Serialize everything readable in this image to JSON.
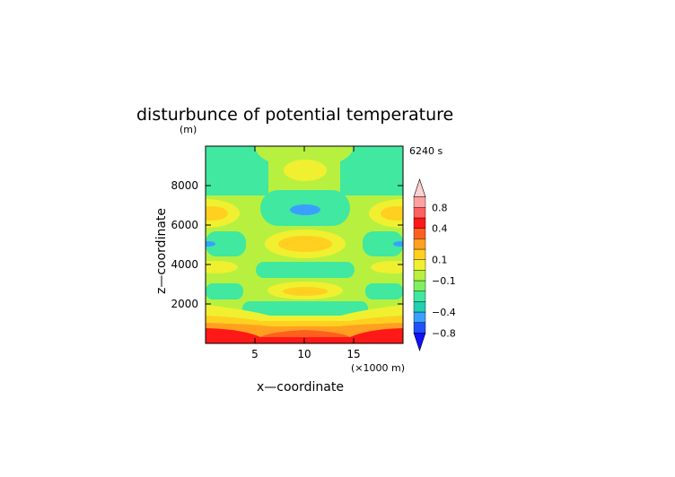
{
  "chart_data": {
    "type": "heatmap",
    "title": "disturbunce of potential temperature",
    "yunit": "(m)",
    "time_label": "6240 s",
    "xlabel": "x—coordinate",
    "ylabel": "z—coordinate",
    "xunit": "(×1000 m)",
    "xlim": [
      0,
      20
    ],
    "ylim": [
      0,
      10000
    ],
    "x_ticks": [
      5,
      10,
      15
    ],
    "y_ticks": [
      2000,
      4000,
      6000,
      8000
    ],
    "grid": false,
    "legend": "right",
    "colorbar": {
      "levels": [
        "-0.8",
        "-0.6",
        "-0.4",
        "-0.3",
        "-0.2",
        "-0.1",
        "-0.05",
        "0.05",
        "0.1",
        "0.2",
        "0.3",
        "0.4",
        "0.6",
        "0.8"
      ],
      "labels": [
        "0.8",
        "0.4",
        "0.1",
        "−0.1",
        "−0.4",
        "−0.8"
      ],
      "colors": [
        "#1010ff",
        "#2050ff",
        "#3aa0ff",
        "#20d0b0",
        "#40e8a0",
        "#80f060",
        "#b8f040",
        "#f0f030",
        "#ffd020",
        "#ffa020",
        "#ff6020",
        "#ff1818",
        "#ff6060",
        "#ffa0a0",
        "#ffd0d0"
      ]
    },
    "bands": [
      {
        "z": [
          0,
          700
        ],
        "value": 0.6
      },
      {
        "z": [
          700,
          1150
        ],
        "value": 0.3
      },
      {
        "z": [
          1150,
          1700
        ],
        "value": 0.1
      },
      {
        "z": [
          1700,
          2400
        ],
        "value": -0.3
      },
      {
        "z": [
          2400,
          3000
        ],
        "value": 0.1
      },
      {
        "z": [
          3000,
          3600
        ],
        "value": -0.1
      },
      {
        "z": [
          3600,
          4300
        ],
        "value": -0.3
      },
      {
        "z": [
          4300,
          5600
        ],
        "value": 0.15
      },
      {
        "z": [
          5600,
          6200
        ],
        "value": -0.3
      },
      {
        "z": [
          6200,
          7500
        ],
        "value": 0.15
      },
      {
        "z": [
          7500,
          8600
        ],
        "value": -0.3
      },
      {
        "z": [
          8600,
          9800
        ],
        "value": 0.1
      }
    ]
  }
}
